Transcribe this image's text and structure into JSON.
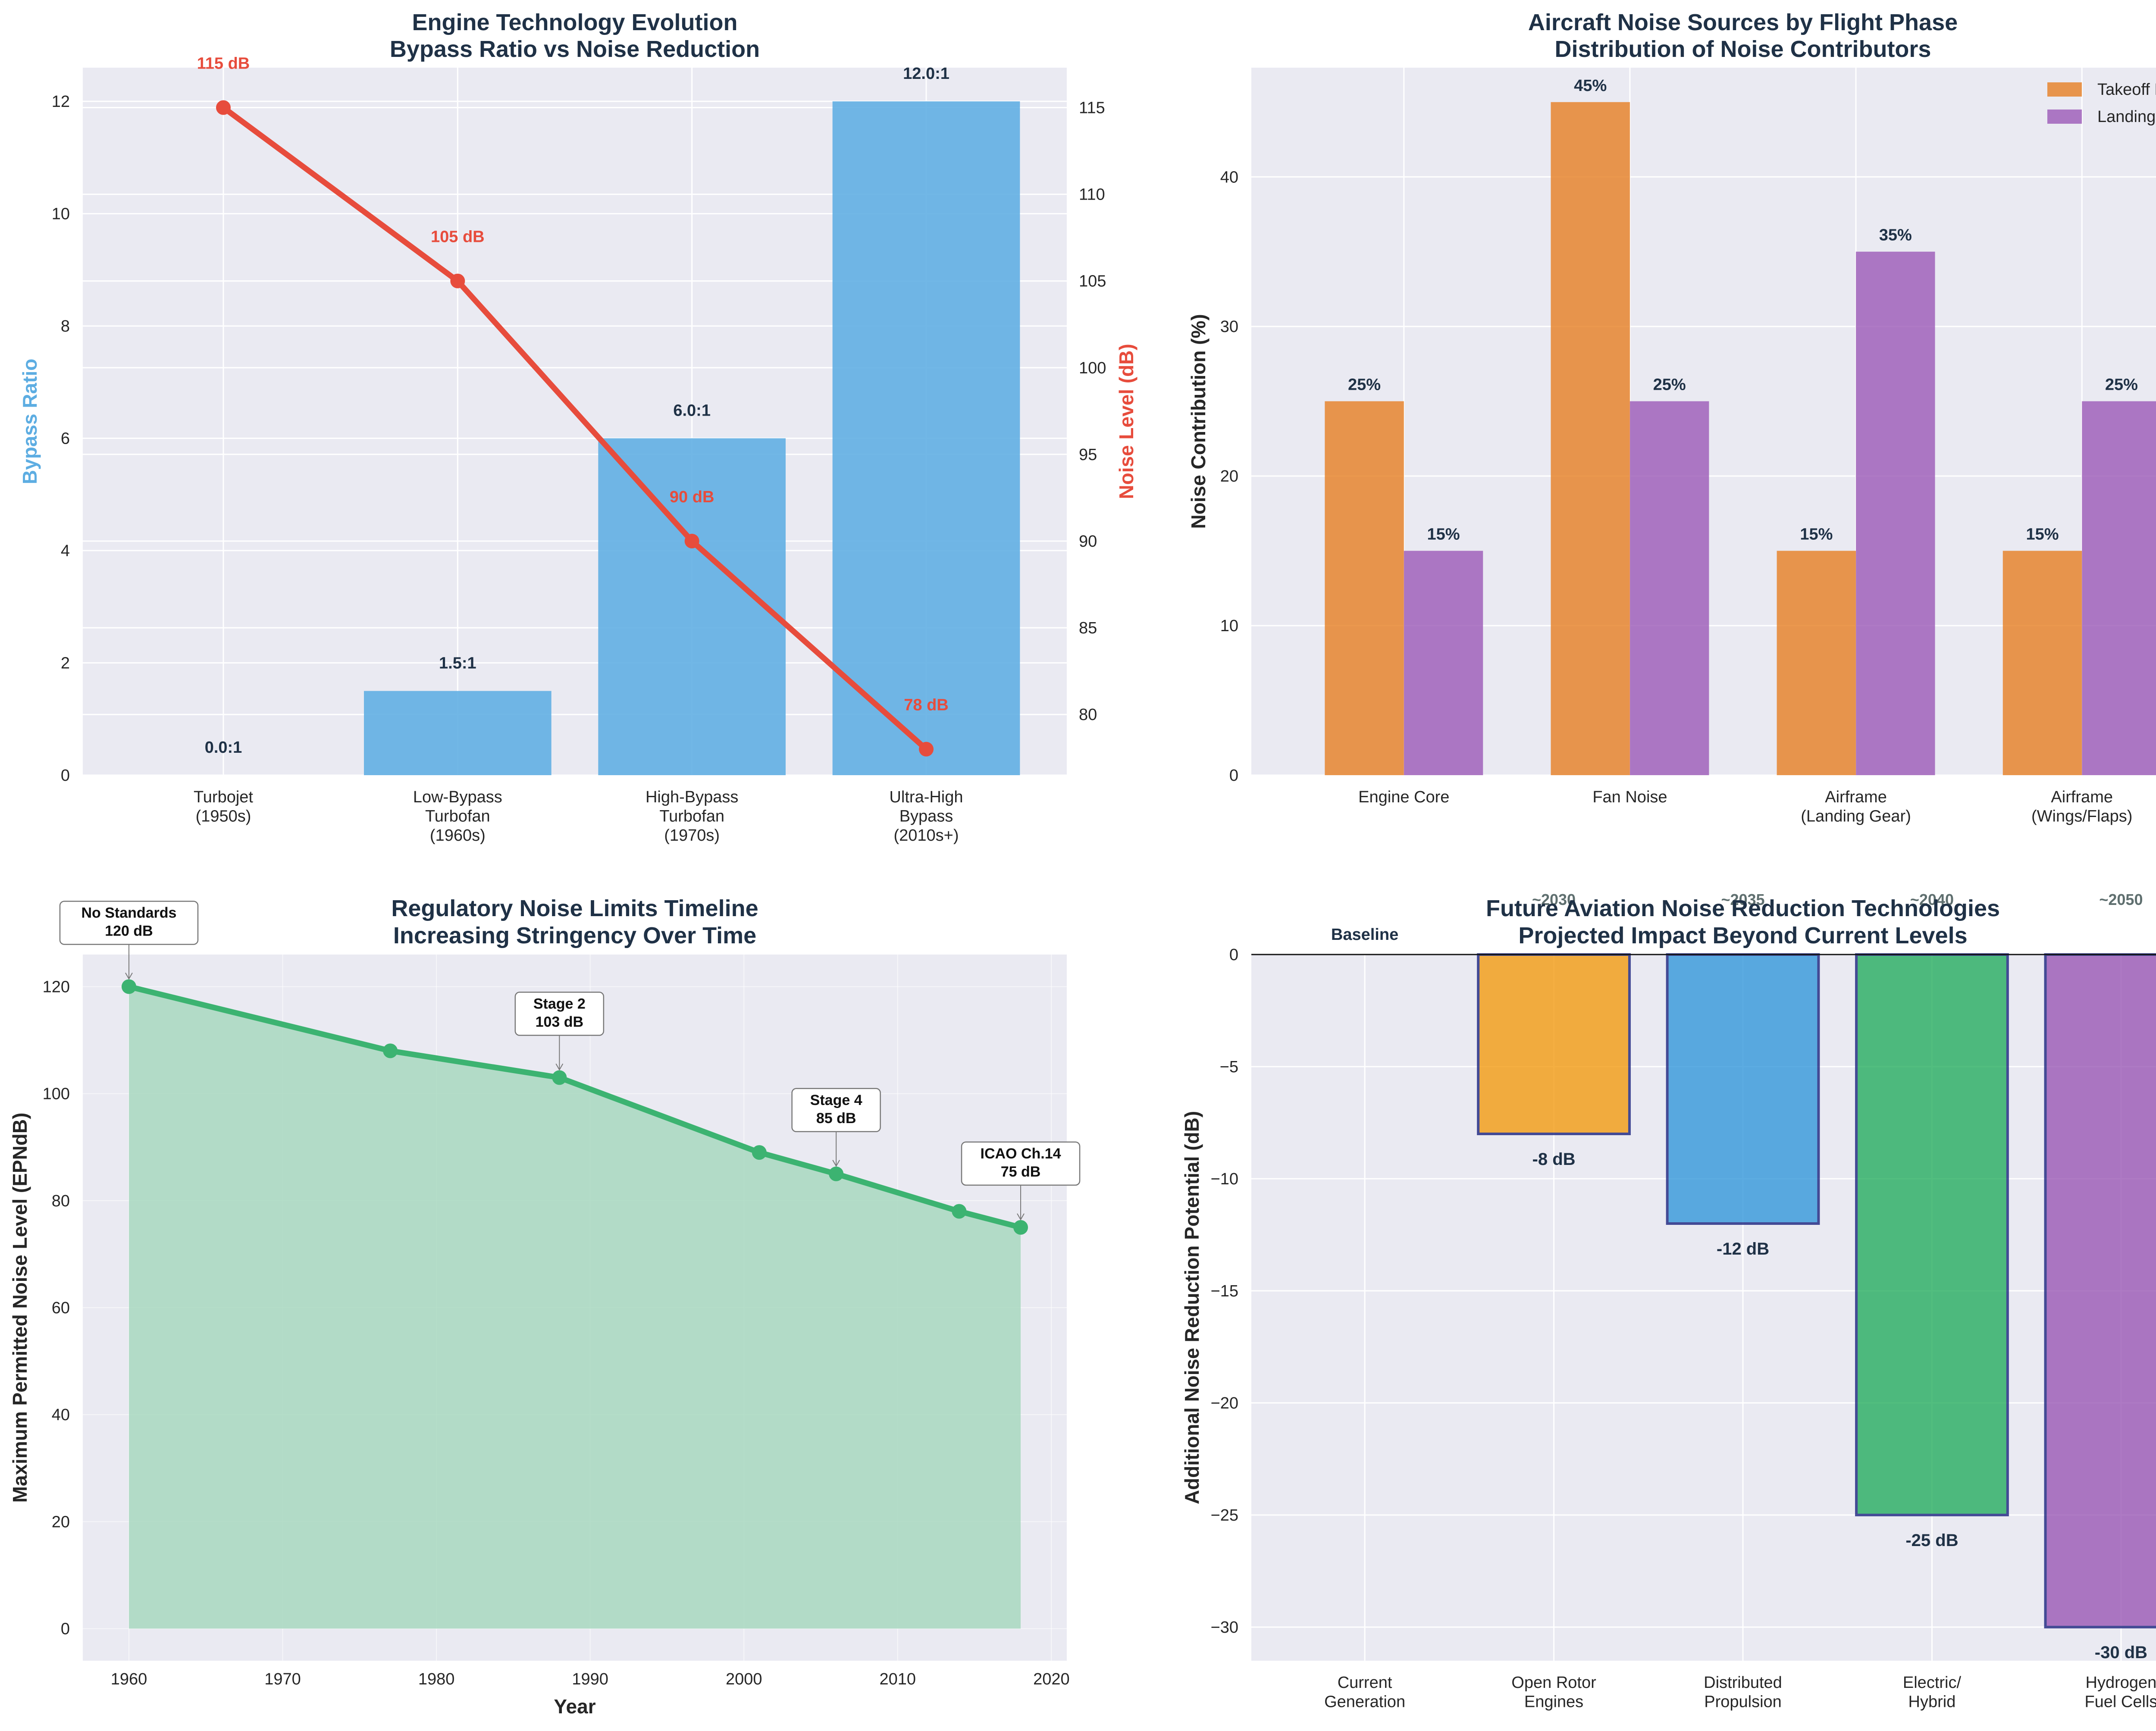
{
  "colors": {
    "plot_bg": "#eaeaf2",
    "grid": "#ffffff",
    "title": "#1f3146",
    "text": "#262626",
    "bypass_bar": "#5dade2",
    "noise_line": "#e74c3c",
    "takeoff": "#e67e22",
    "landing": "#9b59b6",
    "reg_line": "#3cb371",
    "reg_fill": "#a8d8bf",
    "future_orange": "#f39c12",
    "future_blue": "#3498db",
    "future_green": "#27ae60",
    "future_purple": "#9b59b6",
    "future_edge": "#1a237e",
    "year_label": "#5f6f6f"
  },
  "chart_data": [
    {
      "type": "bar",
      "title": "Engine Technology Evolution",
      "subtitle": "Bypass Ratio vs Noise Reduction",
      "ylabel": "Bypass Ratio",
      "y2label": "Noise Level (dB)",
      "categories": [
        "Turbojet\n(1950s)",
        "Low-Bypass\nTurbofan\n(1960s)",
        "High-Bypass\nTurbofan\n(1970s)",
        "Ultra-High\nBypass\n(2010s+)"
      ],
      "ylim": [
        0,
        12.6
      ],
      "y2lim": [
        76.5,
        117.3
      ],
      "yticks": [
        0,
        2,
        4,
        6,
        8,
        10,
        12
      ],
      "y2ticks": [
        80,
        85,
        90,
        95,
        100,
        105,
        110,
        115
      ],
      "series": [
        {
          "name": "Bypass Ratio",
          "kind": "bar",
          "values": [
            0.0,
            1.5,
            6.0,
            12.0
          ],
          "labels": [
            "0.0:1",
            "1.5:1",
            "6.0:1",
            "12.0:1"
          ]
        },
        {
          "name": "Noise Level",
          "kind": "line",
          "axis": "right",
          "values": [
            115,
            105,
            90,
            78
          ],
          "labels": [
            "115 dB",
            "105 dB",
            "90 dB",
            "78 dB"
          ]
        }
      ]
    },
    {
      "type": "bar",
      "title": "Aircraft Noise Sources by Flight Phase",
      "subtitle": "Distribution of Noise Contributors",
      "ylabel": "Noise Contribution (%)",
      "categories": [
        "Engine Core",
        "Fan Noise",
        "Airframe\n(Landing Gear)",
        "Airframe\n(Wings/Flaps)"
      ],
      "ylim": [
        0,
        47.3
      ],
      "yticks": [
        0,
        10,
        20,
        30,
        40
      ],
      "legend": "top-right",
      "series": [
        {
          "name": "Takeoff Phase",
          "values": [
            25,
            45,
            15,
            15
          ],
          "labels": [
            "25%",
            "45%",
            "15%",
            "15%"
          ]
        },
        {
          "name": "Landing Phase",
          "values": [
            15,
            25,
            35,
            25
          ],
          "labels": [
            "15%",
            "25%",
            "35%",
            "25%"
          ]
        }
      ]
    },
    {
      "type": "area",
      "title": "Regulatory Noise Limits Timeline",
      "subtitle": "Increasing Stringency Over Time",
      "xlabel": "Year",
      "ylabel": "Maximum Permitted Noise Level (EPNdB)",
      "xlim": [
        1957,
        2021
      ],
      "ylim": [
        -6,
        126
      ],
      "xticks": [
        1960,
        1970,
        1980,
        1990,
        2000,
        2010,
        2020
      ],
      "yticks": [
        0,
        20,
        40,
        60,
        80,
        100,
        120
      ],
      "x": [
        1960,
        1977,
        1988,
        2001,
        2006,
        2014,
        2018
      ],
      "values": [
        120,
        108,
        103,
        89,
        85,
        78,
        75
      ],
      "annotations": [
        {
          "x": 1960,
          "y": 120,
          "line1": "No Standards",
          "line2": "120 dB"
        },
        {
          "x": 1988,
          "y": 103,
          "line1": "Stage 2",
          "line2": "103 dB"
        },
        {
          "x": 2006,
          "y": 85,
          "line1": "Stage 4",
          "line2": "85 dB"
        },
        {
          "x": 2018,
          "y": 75,
          "line1": "ICAO Ch.14",
          "line2": "75 dB"
        }
      ]
    },
    {
      "type": "bar",
      "title": "Future Aviation Noise Reduction Technologies",
      "subtitle": "Projected Impact Beyond Current Levels",
      "ylabel": "Additional Noise Reduction Potential (dB)",
      "categories": [
        "Current\nGeneration",
        "Open Rotor\nEngines",
        "Distributed\nPropulsion",
        "Electric/\nHybrid",
        "Hydrogen\nFuel Cells"
      ],
      "values": [
        0,
        -8,
        -12,
        -25,
        -30
      ],
      "labels": [
        "Baseline",
        "-8 dB",
        "-12 dB",
        "-25 dB",
        "-30 dB"
      ],
      "years": [
        "",
        "~2030",
        "~2035",
        "~2040",
        "~2050"
      ],
      "ylim": [
        -31.5,
        0
      ],
      "yticks": [
        0,
        -5,
        -10,
        -15,
        -20,
        -25,
        -30
      ]
    }
  ]
}
